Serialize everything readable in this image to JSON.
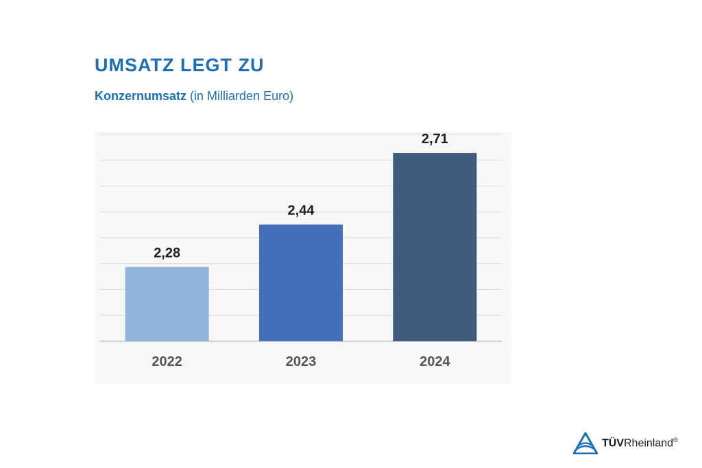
{
  "title": "UMSATZ LEGT ZU",
  "subtitle": {
    "bold": "Konzernumsatz",
    "normal": "(in Milliarden Euro)"
  },
  "colors": {
    "title": "#1a6fb8",
    "bars": [
      "#8fb5dc",
      "#4370b9",
      "#3f5b7e"
    ],
    "grid": "#dcdcdc",
    "logo_blue": "#1a6fb8"
  },
  "chart_data": {
    "type": "bar",
    "categories": [
      "2022",
      "2023",
      "2024"
    ],
    "values": [
      2.28,
      2.44,
      2.71
    ],
    "value_labels": [
      "2,28",
      "2,44",
      "2,71"
    ],
    "ylim": [
      2.0,
      2.78
    ],
    "grid": true,
    "y_axis_labels": false,
    "legend": "none"
  },
  "logo": {
    "text_bold": "TÜV",
    "text_normal": "Rheinland",
    "registered": "®",
    "icon": "tuv-triangle-logo"
  }
}
